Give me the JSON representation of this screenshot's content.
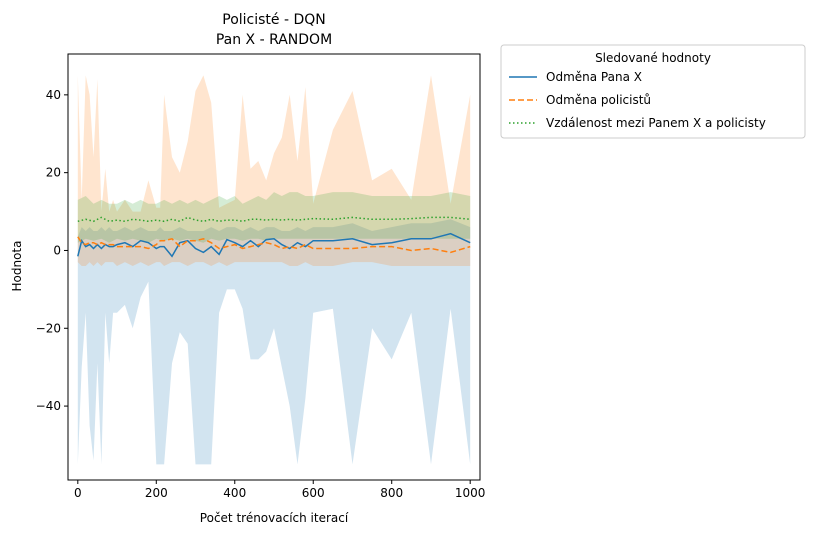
{
  "chart_data": {
    "type": "line",
    "title": "Policisté - DQN",
    "subtitle": "Pan X - RANDOM",
    "xlabel": "Počet trénovacích iterací",
    "ylabel": "Hodnota",
    "xlim": [
      -25,
      1025
    ],
    "ylim": [
      -59,
      50.5
    ],
    "xticks": [
      0,
      200,
      400,
      600,
      800,
      1000
    ],
    "xtick_labels": [
      "0",
      "200",
      "400",
      "600",
      "800",
      "1000"
    ],
    "yticks": [
      -40,
      -20,
      0,
      20,
      40
    ],
    "ytick_labels": [
      "−40",
      "−20",
      "0",
      "20",
      "40"
    ],
    "grid": false,
    "legend": {
      "title": "Sledované hodnoty",
      "placement": "outside-top-right"
    },
    "series": [
      {
        "name": "Odměna Pana X",
        "color": "#1f77b4",
        "style": "solid",
        "x": [
          0,
          10,
          20,
          30,
          40,
          50,
          60,
          70,
          80,
          90,
          100,
          120,
          140,
          160,
          180,
          200,
          210,
          220,
          240,
          260,
          280,
          300,
          320,
          340,
          360,
          380,
          400,
          420,
          440,
          460,
          480,
          500,
          520,
          540,
          560,
          580,
          600,
          650,
          700,
          750,
          800,
          850,
          900,
          950,
          1000
        ],
        "y": [
          -1.5,
          2.5,
          1.0,
          1.5,
          0.5,
          1.5,
          0.5,
          1.5,
          1.0,
          1.0,
          1.5,
          2.0,
          1.0,
          2.5,
          2.0,
          0.5,
          1.0,
          1.0,
          -1.5,
          2.0,
          2.5,
          0.5,
          -0.5,
          1.0,
          -1.0,
          2.8,
          2.0,
          1.0,
          2.5,
          1.0,
          2.8,
          3.0,
          1.5,
          0.5,
          2.0,
          1.0,
          2.5,
          2.5,
          3.0,
          1.5,
          2.0,
          3.0,
          3.0,
          4.3,
          2.0
        ],
        "band_low": [
          -55,
          -30,
          -16,
          -45,
          -54,
          -29,
          -55,
          -16,
          -29,
          -16,
          -16,
          -14,
          -20,
          -12,
          -8,
          -55,
          -55,
          -55,
          -29,
          -21,
          -24,
          -55,
          -55,
          -55,
          -16,
          -10,
          -10,
          -15,
          -28,
          -28,
          -26,
          -20,
          -30,
          -40,
          -55,
          -38,
          -16,
          -15,
          -55,
          -20,
          -28,
          -16,
          -55,
          -15,
          -55
        ],
        "band_high": [
          3.5,
          6,
          5,
          6,
          5,
          5,
          6,
          5,
          6,
          5,
          5,
          6,
          5,
          6,
          5,
          5,
          6,
          5,
          5,
          6,
          5,
          5,
          5,
          6,
          5,
          6,
          6,
          5,
          6,
          5,
          6,
          6,
          5,
          5,
          6,
          5,
          6,
          6,
          7,
          5,
          6,
          7,
          7,
          8,
          6
        ]
      },
      {
        "name": "Odměna policistů",
        "color": "#ff7f0e",
        "style": "dashed",
        "x": [
          0,
          10,
          20,
          30,
          40,
          50,
          60,
          70,
          80,
          90,
          100,
          120,
          140,
          160,
          180,
          200,
          210,
          220,
          240,
          260,
          280,
          300,
          320,
          340,
          360,
          380,
          400,
          420,
          440,
          460,
          480,
          500,
          520,
          540,
          560,
          580,
          600,
          650,
          700,
          750,
          800,
          850,
          900,
          950,
          1000
        ],
        "y": [
          3.5,
          2.0,
          1.5,
          2.0,
          2.0,
          1.5,
          2.0,
          1.5,
          1.5,
          1.5,
          1.0,
          1.0,
          1.0,
          1.0,
          0.5,
          1.5,
          2.5,
          2.5,
          3.0,
          1.0,
          2.5,
          2.5,
          3.0,
          2.0,
          0.5,
          1.0,
          1.5,
          0.5,
          1.0,
          1.5,
          2.0,
          1.5,
          0.5,
          1.0,
          0.5,
          1.5,
          0.5,
          0.5,
          0.5,
          1.0,
          1.0,
          0.0,
          0.5,
          -0.5,
          1.0
        ],
        "band_low": [
          -3,
          -4,
          -4,
          -3,
          -4,
          -3,
          -4,
          -3,
          -3,
          -3,
          -4,
          -3,
          -4,
          -3,
          -4,
          -3,
          -3,
          -4,
          -3,
          -3,
          -4,
          -3,
          -3,
          -4,
          -3,
          -4,
          -3,
          -3,
          -3,
          -3,
          -3,
          -3,
          -3,
          -4,
          -4,
          -3,
          -4,
          -4,
          -3,
          -3,
          -4,
          -4,
          -4,
          -4,
          -4
        ],
        "band_high": [
          45,
          13,
          45,
          40,
          24,
          44,
          10,
          21,
          10,
          13,
          10,
          13,
          10,
          10,
          18,
          11,
          11,
          40,
          24,
          20,
          28,
          41,
          45,
          38,
          11,
          12,
          13,
          40,
          21,
          23,
          18,
          25,
          29,
          40,
          23,
          42,
          12,
          31,
          41,
          18,
          21,
          13,
          45,
          12,
          40
        ]
      },
      {
        "name": "Vzdálenost mezi Panem X a policisty",
        "color": "#2ca02c",
        "style": "dotted",
        "x": [
          0,
          20,
          40,
          60,
          80,
          100,
          120,
          140,
          160,
          180,
          200,
          220,
          240,
          260,
          280,
          300,
          320,
          340,
          360,
          380,
          400,
          420,
          440,
          460,
          480,
          500,
          520,
          540,
          560,
          580,
          600,
          650,
          700,
          750,
          800,
          850,
          900,
          950,
          1000
        ],
        "y": [
          7.5,
          8.0,
          7.5,
          8.5,
          7.5,
          7.8,
          7.5,
          8.0,
          7.8,
          7.5,
          7.8,
          7.5,
          8.0,
          7.5,
          8.5,
          7.8,
          7.5,
          8.0,
          7.5,
          7.8,
          7.8,
          7.5,
          8.0,
          8.0,
          7.8,
          8.0,
          7.8,
          8.0,
          7.8,
          8.0,
          8.2,
          8.0,
          8.5,
          8.0,
          8.0,
          8.2,
          8.5,
          8.5,
          8.0
        ],
        "band_low": [
          2,
          3,
          2.5,
          3,
          2,
          3,
          2.5,
          3,
          2.5,
          2,
          3,
          2.5,
          3,
          2.5,
          3,
          2.5,
          2,
          3,
          2.5,
          3,
          3,
          2.5,
          3,
          3,
          2.5,
          3,
          3,
          3,
          3,
          3,
          3,
          3,
          3,
          3,
          3,
          3,
          3,
          3,
          3
        ],
        "band_high": [
          13,
          14,
          12,
          13,
          12,
          12,
          13,
          12,
          13,
          12,
          12,
          13,
          12,
          13,
          12,
          13,
          12,
          13,
          14,
          13,
          14,
          12,
          13,
          14,
          13,
          15,
          14,
          15,
          15,
          14,
          14,
          15,
          15,
          14,
          14,
          14,
          14,
          15,
          14
        ]
      }
    ]
  }
}
